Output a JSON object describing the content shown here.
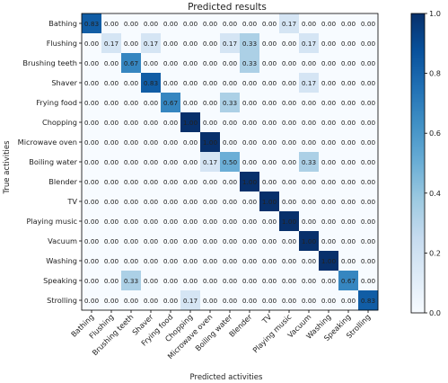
{
  "chart_data": {
    "type": "heatmap",
    "title": "Predicted results",
    "xlabel": "Predicted activities",
    "ylabel": "True activities",
    "labels": [
      "Bathing",
      "Flushing",
      "Brushing teeth",
      "Shaver",
      "Frying food",
      "Chopping",
      "Microwave oven",
      "Boiling water",
      "Blender",
      "TV",
      "Playing music",
      "Vacuum",
      "Washing",
      "Speaking",
      "Strolling"
    ],
    "values": [
      [
        0.83,
        0.0,
        0.0,
        0.0,
        0.0,
        0.0,
        0.0,
        0.0,
        0.0,
        0.0,
        0.17,
        0.0,
        0.0,
        0.0,
        0.0
      ],
      [
        0.0,
        0.17,
        0.0,
        0.17,
        0.0,
        0.0,
        0.0,
        0.17,
        0.33,
        0.0,
        0.0,
        0.17,
        0.0,
        0.0,
        0.0
      ],
      [
        0.0,
        0.0,
        0.67,
        0.0,
        0.0,
        0.0,
        0.0,
        0.0,
        0.33,
        0.0,
        0.0,
        0.0,
        0.0,
        0.0,
        0.0
      ],
      [
        0.0,
        0.0,
        0.0,
        0.83,
        0.0,
        0.0,
        0.0,
        0.0,
        0.0,
        0.0,
        0.0,
        0.17,
        0.0,
        0.0,
        0.0
      ],
      [
        0.0,
        0.0,
        0.0,
        0.0,
        0.67,
        0.0,
        0.0,
        0.33,
        0.0,
        0.0,
        0.0,
        0.0,
        0.0,
        0.0,
        0.0
      ],
      [
        0.0,
        0.0,
        0.0,
        0.0,
        0.0,
        1.0,
        0.0,
        0.0,
        0.0,
        0.0,
        0.0,
        0.0,
        0.0,
        0.0,
        0.0
      ],
      [
        0.0,
        0.0,
        0.0,
        0.0,
        0.0,
        0.0,
        1.0,
        0.0,
        0.0,
        0.0,
        0.0,
        0.0,
        0.0,
        0.0,
        0.0
      ],
      [
        0.0,
        0.0,
        0.0,
        0.0,
        0.0,
        0.0,
        0.17,
        0.5,
        0.0,
        0.0,
        0.0,
        0.33,
        0.0,
        0.0,
        0.0
      ],
      [
        0.0,
        0.0,
        0.0,
        0.0,
        0.0,
        0.0,
        0.0,
        0.0,
        1.0,
        0.0,
        0.0,
        0.0,
        0.0,
        0.0,
        0.0
      ],
      [
        0.0,
        0.0,
        0.0,
        0.0,
        0.0,
        0.0,
        0.0,
        0.0,
        0.0,
        1.0,
        0.0,
        0.0,
        0.0,
        0.0,
        0.0
      ],
      [
        0.0,
        0.0,
        0.0,
        0.0,
        0.0,
        0.0,
        0.0,
        0.0,
        0.0,
        0.0,
        1.0,
        0.0,
        0.0,
        0.0,
        0.0
      ],
      [
        0.0,
        0.0,
        0.0,
        0.0,
        0.0,
        0.0,
        0.0,
        0.0,
        0.0,
        0.0,
        0.0,
        1.0,
        0.0,
        0.0,
        0.0
      ],
      [
        0.0,
        0.0,
        0.0,
        0.0,
        0.0,
        0.0,
        0.0,
        0.0,
        0.0,
        0.0,
        0.0,
        0.0,
        1.0,
        0.0,
        0.0
      ],
      [
        0.0,
        0.0,
        0.33,
        0.0,
        0.0,
        0.0,
        0.0,
        0.0,
        0.0,
        0.0,
        0.0,
        0.0,
        0.0,
        0.67,
        0.0
      ],
      [
        0.0,
        0.0,
        0.0,
        0.0,
        0.0,
        0.17,
        0.0,
        0.0,
        0.0,
        0.0,
        0.0,
        0.0,
        0.0,
        0.0,
        0.83
      ]
    ],
    "colorbar": {
      "range": [
        0.0,
        1.0
      ],
      "ticks": [
        "0.0",
        "0.2",
        "0.4",
        "0.6",
        "0.8",
        "1.0"
      ],
      "colors": [
        "#f7fbff",
        "#deebf7",
        "#c6dbef",
        "#9ecae1",
        "#6baed6",
        "#4292c6",
        "#2171b5",
        "#08519c",
        "#08306b"
      ]
    },
    "grid": false
  }
}
